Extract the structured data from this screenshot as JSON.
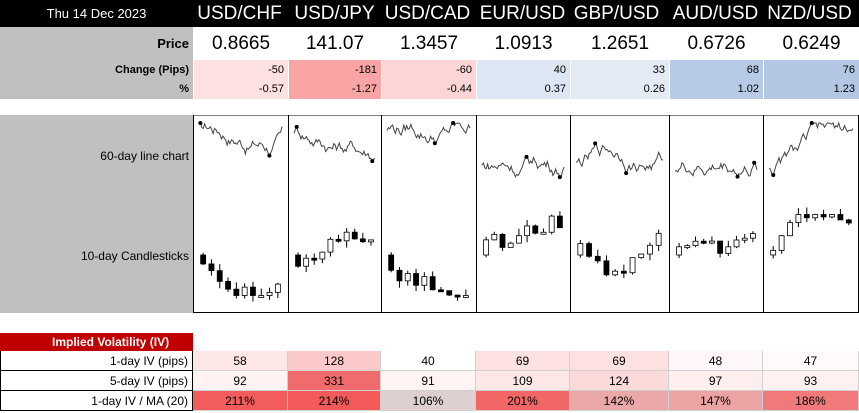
{
  "header": {
    "date": "Thu 14 Dec 2023",
    "pairs": [
      "USD/CHF",
      "USD/JPY",
      "USD/CAD",
      "EUR/USD",
      "GBP/USD",
      "AUD/USD",
      "NZD/USD"
    ]
  },
  "prices": {
    "row_labels": {
      "price": "Price",
      "change": "Change (Pips)",
      "pct": "%"
    },
    "price": [
      "0.8665",
      "141.07",
      "1.3457",
      "1.0913",
      "1.2651",
      "0.6726",
      "0.6249"
    ],
    "change": [
      "-50",
      "-181",
      "-60",
      "40",
      "33",
      "68",
      "76"
    ],
    "pct": [
      "-0.57",
      "-1.27",
      "-0.44",
      "0.37",
      "0.26",
      "1.02",
      "1.23"
    ],
    "change_colors": [
      "#fde0e0",
      "#f9a5a5",
      "#fcd6d6",
      "#dde6f3",
      "#e4ebf5",
      "#b8cbe6",
      "#b3c7e3"
    ]
  },
  "charts": {
    "line_label": "60-day line chart",
    "candle_label": "10-day Candlesticks"
  },
  "iv": {
    "title": "Implied Volatility (IV)",
    "rows": [
      {
        "label": "1-day IV (pips)",
        "values": [
          "58",
          "128",
          "40",
          "69",
          "69",
          "48",
          "47"
        ],
        "colors": [
          "#fde7e7",
          "#fbc9c9",
          "#ffffff",
          "#fde0e0",
          "#fde0e0",
          "#fff7f7",
          "#fff9f9"
        ]
      },
      {
        "label": "5-day IV (pips)",
        "values": [
          "92",
          "331",
          "91",
          "109",
          "124",
          "97",
          "93"
        ],
        "colors": [
          "#fff2f2",
          "#f06b6b",
          "#fff3f3",
          "#fde6e6",
          "#fcdada",
          "#ffeeee",
          "#fff1f1"
        ]
      },
      {
        "label": "1-day IV / MA (20)",
        "values": [
          "211%",
          "214%",
          "106%",
          "201%",
          "142%",
          "147%",
          "186%"
        ],
        "colors": [
          "#f25c5c",
          "#f25a5a",
          "#dfd0d0",
          "#f36666",
          "#eba8a8",
          "#eca3a3",
          "#f07a7a"
        ]
      }
    ]
  }
}
